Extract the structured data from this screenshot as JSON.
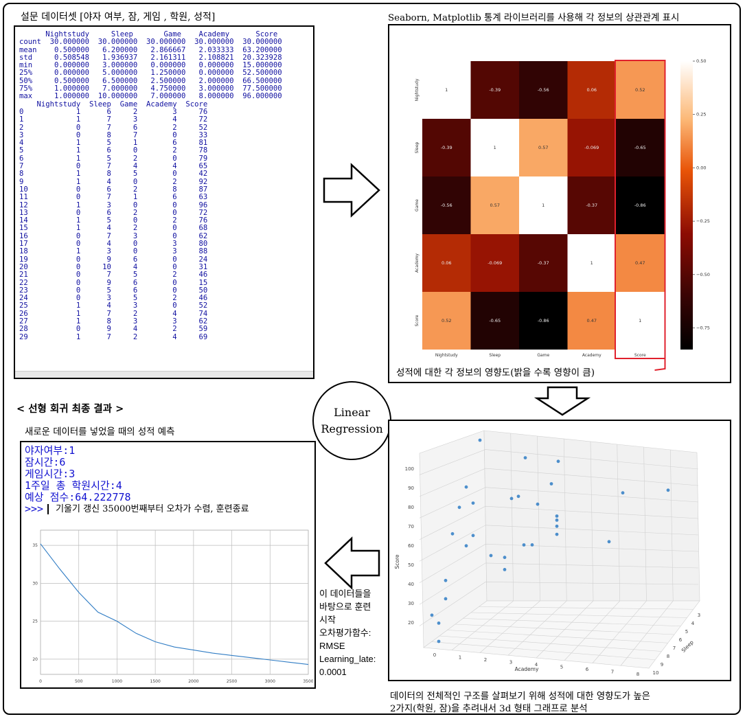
{
  "captions": {
    "survey": "설문 데이터셋 [야자 여부, 잠, 게임 , 학원, 성적]",
    "seaborn": "Seaborn, Matplotlib 통계 라이브러리를 사용해 각 정보의 상관관계 표시",
    "heat_note": "성적에 대한 각 정보의 영향도(밝을 수록 영향이 큼)",
    "final_title": "< 선형 회귀 최종 결과 >",
    "predict_sub": "새로운 데이터를 넣었을 때의 성적 예측",
    "scatter_note_1": "데이터의 전체적인 구조를 살펴보기 위해 성적에 대한 영향도가 높은",
    "scatter_note_2": "2가지(학원, 잠)을 추려내서 3d 형태 그래프로 분석",
    "lr_1": "Linear",
    "lr_2": "Regression",
    "side": [
      "이 데이터들을",
      "바탕으로 훈련",
      "시작",
      "오차평가함수:",
      "RMSE",
      "Learning_late:",
      "0.0001"
    ]
  },
  "describe": {
    "header": "      Nightstudy     Sleep       Game    Academy      Score",
    "rows": [
      "count  30.000000  30.000000  30.000000  30.000000  30.000000",
      "mean    0.500000   6.200000   2.866667   2.033333  63.200000",
      "std     0.508548   1.936937   2.161311   2.108821  20.323928",
      "min     0.000000   3.000000   0.000000   0.000000  15.000000",
      "25%     0.000000   5.000000   1.250000   0.000000  52.500000",
      "50%     0.500000   6.500000   2.500000   2.000000  66.500000",
      "75%     1.000000   7.000000   4.750000   3.000000  77.500000",
      "max     1.000000  10.000000   7.000000   8.000000  96.000000"
    ],
    "data_header": "    Nightstudy  Sleep  Game  Academy  Score",
    "data": [
      [
        0,
        1,
        6,
        2,
        3,
        76
      ],
      [
        1,
        1,
        7,
        3,
        4,
        72
      ],
      [
        2,
        0,
        7,
        6,
        2,
        52
      ],
      [
        3,
        0,
        8,
        7,
        0,
        33
      ],
      [
        4,
        1,
        5,
        1,
        6,
        81
      ],
      [
        5,
        1,
        6,
        0,
        2,
        78
      ],
      [
        6,
        1,
        5,
        2,
        0,
        79
      ],
      [
        7,
        0,
        7,
        4,
        4,
        65
      ],
      [
        8,
        1,
        8,
        5,
        0,
        42
      ],
      [
        9,
        1,
        4,
        0,
        2,
        92
      ],
      [
        10,
        0,
        6,
        2,
        8,
        87
      ],
      [
        11,
        0,
        7,
        1,
        6,
        63
      ],
      [
        12,
        1,
        3,
        0,
        0,
        96
      ],
      [
        13,
        0,
        6,
        2,
        0,
        72
      ],
      [
        14,
        1,
        5,
        0,
        2,
        76
      ],
      [
        15,
        1,
        4,
        2,
        0,
        68
      ],
      [
        16,
        0,
        7,
        3,
        0,
        62
      ],
      [
        17,
        0,
        4,
        0,
        3,
        80
      ],
      [
        18,
        1,
        3,
        0,
        3,
        88
      ],
      [
        19,
        0,
        9,
        6,
        0,
        24
      ],
      [
        20,
        0,
        10,
        4,
        0,
        31
      ],
      [
        21,
        0,
        7,
        5,
        2,
        46
      ],
      [
        22,
        0,
        9,
        6,
        0,
        15
      ],
      [
        23,
        0,
        5,
        6,
        0,
        50
      ],
      [
        24,
        0,
        3,
        5,
        2,
        46
      ],
      [
        25,
        1,
        4,
        3,
        0,
        52
      ],
      [
        26,
        1,
        7,
        2,
        4,
        74
      ],
      [
        27,
        1,
        8,
        3,
        3,
        62
      ],
      [
        28,
        0,
        9,
        4,
        2,
        59
      ],
      [
        29,
        1,
        7,
        2,
        4,
        69
      ]
    ]
  },
  "chart_data": [
    {
      "type": "heatmap",
      "labels": [
        "Nightstudy",
        "Sleep",
        "Game",
        "Academy",
        "Score"
      ],
      "matrix": [
        [
          "1",
          "-0.39",
          "-0.56",
          "0.06",
          "0.52"
        ],
        [
          "-0.39",
          "1",
          "0.57",
          "-0.069",
          "-0.65"
        ],
        [
          "-0.56",
          "0.57",
          "1",
          "-0.37",
          "-0.86"
        ],
        [
          "0.06",
          "-0.069",
          "-0.37",
          "1",
          "0.47"
        ],
        [
          "0.52",
          "-0.65",
          "-0.86",
          "0.47",
          "1"
        ]
      ],
      "colorbar_ticks": [
        "0.50",
        "0.25",
        "0.00",
        "−0.25",
        "−0.50",
        "−0.75"
      ],
      "colormap": "gist_heat",
      "highlight_column": "Score",
      "highlight_color": "#e0202c"
    },
    {
      "type": "scatter3d",
      "xlabel": "Academy",
      "ylabel": "Sleep",
      "zlabel": "Score",
      "x_ticks": [
        "0",
        "1",
        "2",
        "3",
        "4",
        "5",
        "6",
        "7",
        "8"
      ],
      "y_ticks": [
        "3",
        "4",
        "5",
        "6",
        "7",
        "8",
        "9",
        "10"
      ],
      "z_ticks": [
        "20",
        "30",
        "40",
        "50",
        "60",
        "70",
        "80",
        "90",
        "100"
      ],
      "point_color": "#2f7cc4"
    },
    {
      "type": "line",
      "x_ticks": [
        "0",
        "500",
        "1000",
        "1500",
        "2000",
        "2500",
        "3000",
        "3500"
      ],
      "y_ticks": [
        "35",
        "30",
        "25",
        "20"
      ],
      "xlim": [
        0,
        3500
      ],
      "ylim": [
        18,
        37
      ],
      "line_color": "#2f7cc4",
      "x": [
        0,
        250,
        500,
        750,
        1000,
        1250,
        1500,
        1750,
        2000,
        2250,
        2500,
        2750,
        3000,
        3250,
        3500
      ],
      "y": [
        35.2,
        31.9,
        28.8,
        26.2,
        25.0,
        23.4,
        22.3,
        21.6,
        21.2,
        20.8,
        20.5,
        20.2,
        19.9,
        19.6,
        19.3
      ]
    }
  ],
  "prediction": {
    "lines": [
      "야자여부:1",
      "잠시간:6",
      "게임시간:3",
      "1주일 총 학원시간:4",
      "예상 점수:64.222778"
    ],
    "prompt": ">>>",
    "note": "기울기 갱신 35000번째부터 오차가 수렴, 훈련종료"
  }
}
